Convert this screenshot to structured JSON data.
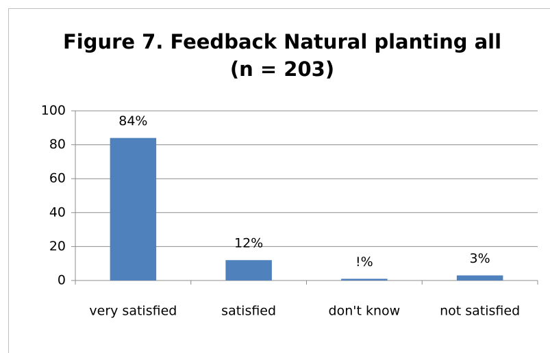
{
  "chart_data": {
    "type": "bar",
    "title": [
      "Figure 7. Feedback Natural planting all",
      "(n = 203)"
    ],
    "categories": [
      "very satisfied",
      "satisfied",
      "don't know",
      "not satisfied"
    ],
    "values": [
      84,
      12,
      1,
      3
    ],
    "value_labels": [
      "84%",
      "12%",
      "!%",
      "3%"
    ],
    "color": "#4f81bd",
    "ylim": [
      0,
      100
    ],
    "yticks": [
      0,
      20,
      40,
      60,
      80,
      100
    ],
    "grid": true
  }
}
